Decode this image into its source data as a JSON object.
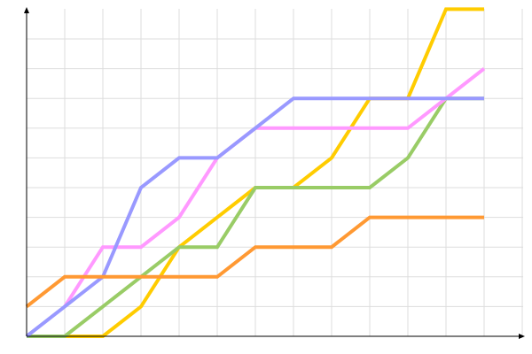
{
  "chart_data": {
    "type": "line",
    "title": "",
    "xlabel": "",
    "ylabel": "",
    "x": [
      0,
      1,
      2,
      3,
      4,
      5,
      6,
      7,
      8,
      9,
      10,
      11,
      12
    ],
    "xlim": [
      0,
      13
    ],
    "ylim": [
      0,
      11
    ],
    "grid": true,
    "legend": "none",
    "series": [
      {
        "color": "#ffcc00",
        "values": [
          0,
          0,
          0,
          1,
          3,
          4,
          5,
          5,
          6,
          8,
          8,
          11,
          11
        ]
      },
      {
        "color": "#99cc66",
        "values": [
          0,
          0,
          1,
          2,
          3,
          3,
          5,
          5,
          5,
          5,
          6,
          8,
          8
        ]
      },
      {
        "color": "#ff99ff",
        "values": [
          null,
          1,
          3,
          3,
          4,
          6,
          7,
          7,
          7,
          7,
          7,
          8,
          9
        ]
      },
      {
        "color": "#9999ff",
        "values": [
          0,
          1,
          2,
          5,
          6,
          6,
          7,
          8,
          8,
          8,
          8,
          8,
          8
        ]
      },
      {
        "color": "#ff9933",
        "values": [
          1,
          2,
          2,
          2,
          2,
          2,
          3,
          3,
          3,
          4,
          4,
          4,
          4
        ]
      }
    ]
  }
}
